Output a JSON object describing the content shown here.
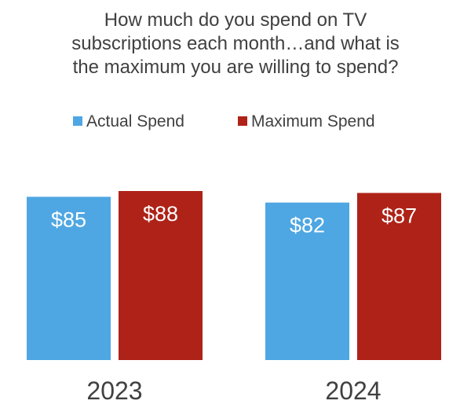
{
  "chart_data": {
    "type": "bar",
    "title_lines": [
      "How much do you spend on TV",
      "subscriptions each month…and what is",
      "the maximum you are willing to spend?"
    ],
    "categories": [
      "2023",
      "2024"
    ],
    "series": [
      {
        "name": "Actual Spend",
        "values": [
          85,
          82
        ],
        "labels": [
          "$85",
          "$82"
        ],
        "color": "#4EA7E2"
      },
      {
        "name": "Maximum Spend",
        "values": [
          88,
          87
        ],
        "labels": [
          "$88",
          "$87"
        ],
        "color": "#AE2217"
      }
    ],
    "ylim": [
      0,
      88
    ],
    "grid": false,
    "legend_position": "top-center"
  }
}
